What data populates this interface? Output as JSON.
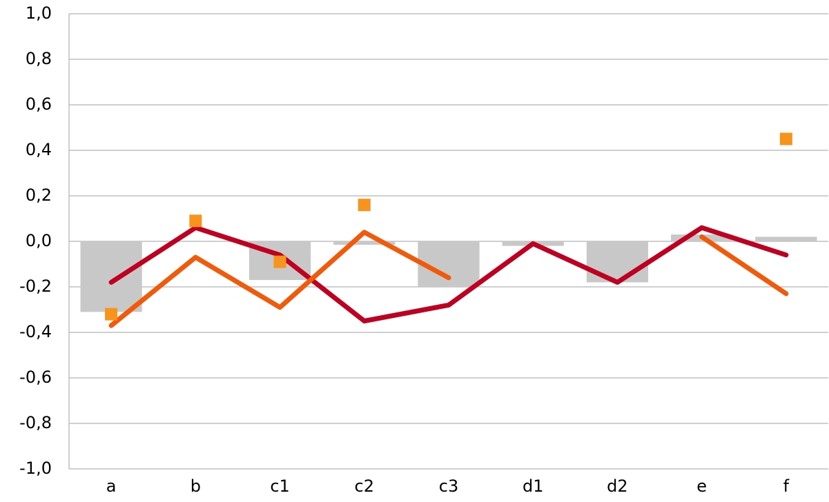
{
  "chart_data": {
    "type": "combo",
    "categories": [
      "a",
      "b",
      "c1",
      "c2",
      "c3",
      "d1",
      "d2",
      "e",
      "f"
    ],
    "series": [
      {
        "type": "bar",
        "color": "#c8c8c8",
        "values": [
          -0.31,
          null,
          -0.17,
          -0.015,
          -0.2,
          -0.02,
          -0.18,
          0.03,
          0.02
        ]
      },
      {
        "type": "line",
        "color": "#c00020",
        "values": [
          -0.18,
          0.06,
          -0.06,
          -0.35,
          -0.28,
          -0.01,
          -0.18,
          0.06,
          -0.06
        ]
      },
      {
        "type": "line",
        "color": "#f05a0a",
        "values": [
          -0.37,
          -0.07,
          -0.29,
          0.04,
          -0.16,
          null,
          null,
          0.02,
          -0.23
        ]
      },
      {
        "type": "scatter",
        "color": "#f7941d",
        "values": [
          -0.32,
          0.09,
          -0.09,
          0.16,
          null,
          null,
          null,
          null,
          0.45
        ]
      }
    ],
    "ylim": [
      -1.0,
      1.0
    ],
    "yticks": [
      {
        "value": -1.0,
        "label": "-1,0"
      },
      {
        "value": -0.8,
        "label": "-0,8"
      },
      {
        "value": -0.6,
        "label": "-0,6"
      },
      {
        "value": -0.4,
        "label": "-0,4"
      },
      {
        "value": -0.2,
        "label": "-0,2"
      },
      {
        "value": 0,
        "label": "0,0"
      },
      {
        "value": 0.2,
        "label": "0,2"
      },
      {
        "value": 0.4,
        "label": "0,4"
      },
      {
        "value": 0.6,
        "label": "0,6"
      },
      {
        "value": 0.8,
        "label": "0,8"
      },
      {
        "value": 1.0,
        "label": "1,0"
      }
    ],
    "grid": true
  }
}
